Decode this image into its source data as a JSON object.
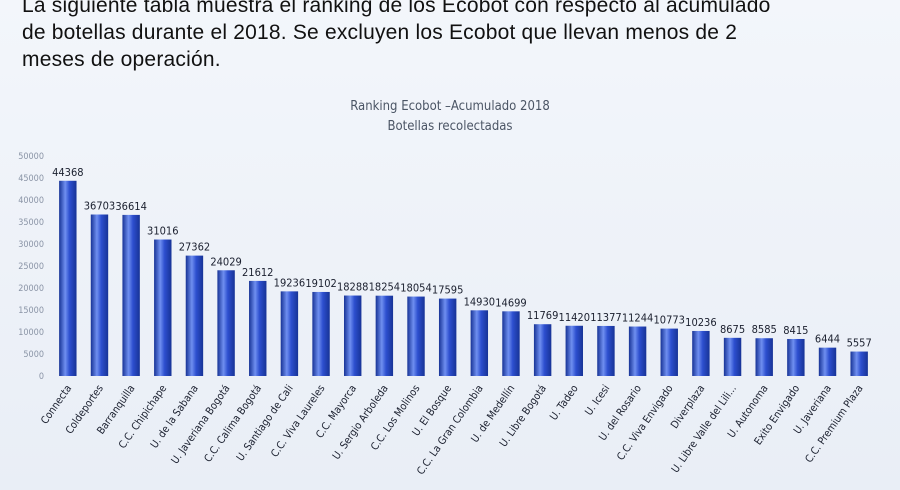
{
  "document": {
    "lines": [
      "La siguiente tabla muestra el ranking de los Ecobot con respecto al acumulado",
      "de botellas durante el 2018. Se excluyen los Ecobot que llevan menos de 2",
      "meses de operación."
    ]
  },
  "colors": {
    "bar": "#2d4fcf",
    "bar_light": "#6f8ff0",
    "bar_dark": "#173396"
  },
  "chart_data": {
    "type": "bar",
    "title": "Ranking Ecobot –Acumulado 2018",
    "subtitle": "Botellas recolectadas",
    "xlabel": "",
    "ylabel": "",
    "ylim": [
      0,
      50000
    ],
    "yticks": [
      0,
      5000,
      10000,
      15000,
      20000,
      25000,
      30000,
      35000,
      40000,
      45000,
      50000
    ],
    "grid": false,
    "legend": "none",
    "categories": [
      "Connecta",
      "Coldeportes",
      "Barranquilla",
      "C.C. Chipichape",
      "U. de la Sabana",
      "U. Javeriana Bogotá",
      "C.C. Calima Bogotá",
      "U. Santiago de Cali",
      "C.C. Viva Laureles",
      "C.C. Mayorca",
      "U. Sergio Arboleda",
      "C.C. Los Molinos",
      "U. El Bosque",
      "C.C. La Gran Colombia",
      "U. de Medellín",
      "U. Libre Bogotá",
      "U. Tadeo",
      "U. Icesi",
      "U. del Rosario",
      "C.C. Viva Envigado",
      "Diverplaza",
      "U. Libre Valle del Lili...",
      "U. Autonoma",
      "Exito Envigado",
      "U. Javeriana",
      "C.C. Premium Plaza"
    ],
    "values": [
      44368,
      36703,
      36614,
      31016,
      27362,
      24029,
      21612,
      19236,
      19102,
      18288,
      18254,
      18054,
      17595,
      14930,
      14699,
      11769,
      11420,
      11377,
      11244,
      10773,
      10236,
      8675,
      8585,
      8415,
      6444,
      5557
    ],
    "value_labels": [
      "44368",
      "36703",
      "36614",
      "31016",
      "27362",
      "24029",
      "21612",
      "19236",
      "19102",
      "18288",
      "18254",
      "18054",
      "17595",
      "14930",
      "14699",
      "11769",
      "11420",
      "11377",
      "11244",
      "10773",
      "10236",
      "8675",
      "8585",
      "8415",
      "6444",
      "5557"
    ]
  }
}
